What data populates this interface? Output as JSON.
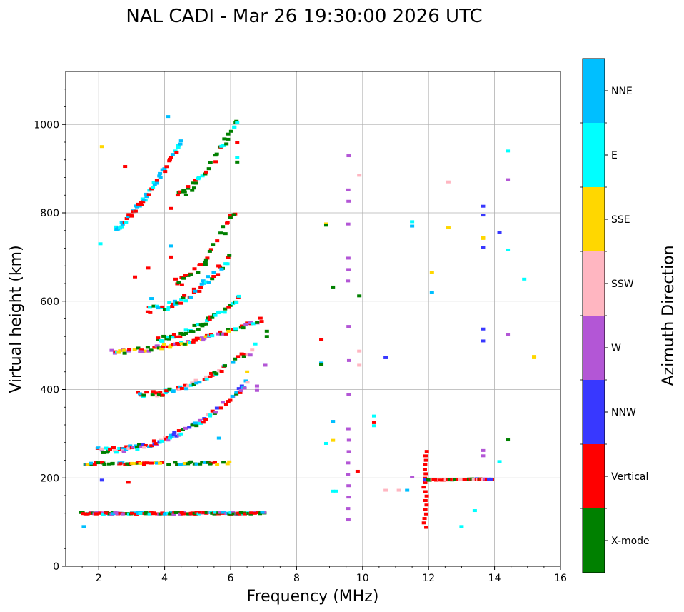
{
  "chart_data": {
    "type": "scatter",
    "title": "NAL CADI - Mar 26 19:30:00 2026 UTC",
    "xlabel": "Frequency (MHz)",
    "ylabel": "Virtual height (km)",
    "xlim": [
      1,
      16
    ],
    "ylim": [
      0,
      1120
    ],
    "x_ticks": [
      2,
      4,
      6,
      8,
      10,
      12,
      14,
      16
    ],
    "y_ticks": [
      0,
      200,
      400,
      600,
      800,
      1000
    ],
    "grid": true,
    "colorbar": {
      "label": "Azimuth Direction",
      "categories": [
        {
          "name": "X-mode",
          "color": "#008000"
        },
        {
          "name": "Vertical",
          "color": "#ff0000"
        },
        {
          "name": "NNW",
          "color": "#3838ff"
        },
        {
          "name": "W",
          "color": "#b356d6"
        },
        {
          "name": "SSW",
          "color": "#ffb6c1"
        },
        {
          "name": "SSE",
          "color": "#ffd700"
        },
        {
          "name": "E",
          "color": "#00ffff"
        },
        {
          "name": "NNE",
          "color": "#00bfff"
        }
      ]
    },
    "trace_segments": [
      {
        "name": "E-layer",
        "x0": 1.5,
        "x1": 7.0,
        "h0": 120,
        "h1": 120,
        "mix": [
          "Vertical",
          "Vertical",
          "X-mode",
          "W",
          "NNE",
          "X-mode",
          "Vertical",
          "E"
        ],
        "step": 0.09,
        "jitter": 2
      },
      {
        "name": "Es-2hop",
        "x0": 1.6,
        "x1": 6.0,
        "h0": 232,
        "h1": 234,
        "mix": [
          "Vertical",
          "X-mode",
          "X-mode",
          "SSE",
          "Vertical",
          "NNE"
        ],
        "step": 0.1,
        "jitter": 3
      },
      {
        "name": "F-trace-1",
        "x0": 2.0,
        "x1": 6.5,
        "h0": 262,
        "h1": 415,
        "curve": 2.2,
        "mix": [
          "Vertical",
          "Vertical",
          "X-mode",
          "NNE",
          "E",
          "SSW",
          "W",
          "NNW"
        ],
        "step": 0.07,
        "jitter": 6
      },
      {
        "name": "F-trace-2",
        "x0": 3.2,
        "x1": 6.8,
        "h0": 388,
        "h1": 505,
        "curve": 2.0,
        "mix": [
          "Vertical",
          "Vertical",
          "X-mode",
          "E",
          "NNE",
          "SSW"
        ],
        "step": 0.08,
        "jitter": 6
      },
      {
        "name": "F-trace-3",
        "x0": 2.4,
        "x1": 7.0,
        "h0": 486,
        "h1": 560,
        "curve": 1.8,
        "mix": [
          "Vertical",
          "Vertical",
          "X-mode",
          "E",
          "SSE",
          "W"
        ],
        "step": 0.08,
        "jitter": 5
      },
      {
        "name": "F-trace-4",
        "x0": 3.8,
        "x1": 6.3,
        "h0": 515,
        "h1": 610,
        "curve": 1.7,
        "mix": [
          "Vertical",
          "X-mode",
          "X-mode",
          "E"
        ],
        "step": 0.08,
        "jitter": 6
      },
      {
        "name": "F-trace-5",
        "x0": 3.5,
        "x1": 6.0,
        "h0": 580,
        "h1": 700,
        "curve": 1.8,
        "mix": [
          "Vertical",
          "X-mode",
          "NNE",
          "E"
        ],
        "step": 0.08,
        "jitter": 8
      },
      {
        "name": "F-trace-6",
        "x0": 2.5,
        "x1": 4.5,
        "h0": 765,
        "h1": 960,
        "curve": 1.3,
        "mix": [
          "Vertical",
          "NNE",
          "E",
          "Vertical"
        ],
        "step": 0.06,
        "jitter": 6
      },
      {
        "name": "F-trace-7",
        "x0": 4.4,
        "x1": 6.2,
        "h0": 840,
        "h1": 1010,
        "curve": 1.5,
        "mix": [
          "X-mode",
          "E",
          "Vertical",
          "X-mode"
        ],
        "step": 0.08,
        "jitter": 8
      },
      {
        "name": "F-trace-8",
        "x0": 4.3,
        "x1": 6.1,
        "h0": 640,
        "h1": 800,
        "curve": 1.6,
        "mix": [
          "Vertical",
          "X-mode",
          "Vertical"
        ],
        "step": 0.1,
        "jitter": 10
      },
      {
        "name": "W-column-9.6",
        "x0": 9.55,
        "x1": 9.6,
        "h0": 105,
        "h1": 955,
        "mix": [
          "W",
          "W",
          "W",
          "W"
        ],
        "step": 0.0,
        "count": 34,
        "jitter": 0
      },
      {
        "name": "Red-column-12",
        "x0": 11.85,
        "x1": 11.95,
        "h0": 88,
        "h1": 260,
        "mix": [
          "Vertical"
        ],
        "step": 0.0,
        "count": 18,
        "jitter": 0
      },
      {
        "name": "Hband-200",
        "x0": 11.9,
        "x1": 14.0,
        "h0": 195,
        "h1": 198,
        "mix": [
          "Vertical",
          "X-mode",
          "W",
          "NNW",
          "Vertical",
          "SSW"
        ],
        "step": 0.07,
        "jitter": 1
      }
    ],
    "scattered_points": [
      {
        "x": 8.9,
        "y": 775,
        "c": "SSE"
      },
      {
        "x": 8.9,
        "y": 772,
        "c": "X-mode"
      },
      {
        "x": 9.1,
        "y": 632,
        "c": "X-mode"
      },
      {
        "x": 8.75,
        "y": 513,
        "c": "Vertical"
      },
      {
        "x": 8.75,
        "y": 460,
        "c": "NNE"
      },
      {
        "x": 8.75,
        "y": 456,
        "c": "X-mode"
      },
      {
        "x": 9.1,
        "y": 328,
        "c": "NNE"
      },
      {
        "x": 9.1,
        "y": 285,
        "c": "SSE"
      },
      {
        "x": 8.9,
        "y": 278,
        "c": "E"
      },
      {
        "x": 9.1,
        "y": 170,
        "c": "E"
      },
      {
        "x": 9.2,
        "y": 170,
        "c": "E"
      },
      {
        "x": 9.9,
        "y": 885,
        "c": "SSW"
      },
      {
        "x": 9.9,
        "y": 612,
        "c": "X-mode"
      },
      {
        "x": 9.9,
        "y": 487,
        "c": "SSW"
      },
      {
        "x": 9.9,
        "y": 455,
        "c": "SSW"
      },
      {
        "x": 9.85,
        "y": 215,
        "c": "Vertical"
      },
      {
        "x": 10.35,
        "y": 340,
        "c": "E"
      },
      {
        "x": 10.35,
        "y": 325,
        "c": "Vertical"
      },
      {
        "x": 10.35,
        "y": 318,
        "c": "E"
      },
      {
        "x": 10.7,
        "y": 472,
        "c": "NNW"
      },
      {
        "x": 10.7,
        "y": 172,
        "c": "SSW"
      },
      {
        "x": 11.1,
        "y": 172,
        "c": "SSW"
      },
      {
        "x": 11.35,
        "y": 172,
        "c": "NNE"
      },
      {
        "x": 11.5,
        "y": 780,
        "c": "E"
      },
      {
        "x": 11.5,
        "y": 770,
        "c": "NNE"
      },
      {
        "x": 11.5,
        "y": 202,
        "c": "W"
      },
      {
        "x": 12.1,
        "y": 665,
        "c": "SSE"
      },
      {
        "x": 12.1,
        "y": 620,
        "c": "NNE"
      },
      {
        "x": 12.6,
        "y": 870,
        "c": "SSW"
      },
      {
        "x": 12.6,
        "y": 766,
        "c": "SSE"
      },
      {
        "x": 13.0,
        "y": 90,
        "c": "E"
      },
      {
        "x": 13.4,
        "y": 126,
        "c": "E"
      },
      {
        "x": 13.65,
        "y": 815,
        "c": "NNW"
      },
      {
        "x": 13.65,
        "y": 795,
        "c": "NNW"
      },
      {
        "x": 13.65,
        "y": 745,
        "c": "SSE"
      },
      {
        "x": 13.65,
        "y": 742,
        "c": "SSE"
      },
      {
        "x": 13.65,
        "y": 722,
        "c": "NNW"
      },
      {
        "x": 13.65,
        "y": 537,
        "c": "NNW"
      },
      {
        "x": 13.65,
        "y": 510,
        "c": "NNW"
      },
      {
        "x": 13.65,
        "y": 262,
        "c": "W"
      },
      {
        "x": 13.65,
        "y": 250,
        "c": "W"
      },
      {
        "x": 14.15,
        "y": 755,
        "c": "NNW"
      },
      {
        "x": 14.15,
        "y": 237,
        "c": "E"
      },
      {
        "x": 14.4,
        "y": 940,
        "c": "E"
      },
      {
        "x": 14.4,
        "y": 875,
        "c": "W"
      },
      {
        "x": 14.4,
        "y": 716,
        "c": "E"
      },
      {
        "x": 14.4,
        "y": 524,
        "c": "W"
      },
      {
        "x": 14.4,
        "y": 286,
        "c": "X-mode"
      },
      {
        "x": 14.9,
        "y": 650,
        "c": "E"
      },
      {
        "x": 15.2,
        "y": 475,
        "c": "SSE"
      },
      {
        "x": 15.2,
        "y": 472,
        "c": "SSE"
      },
      {
        "x": 2.1,
        "y": 950,
        "c": "SSE"
      },
      {
        "x": 4.1,
        "y": 1018,
        "c": "NNE"
      },
      {
        "x": 6.2,
        "y": 1005,
        "c": "E"
      },
      {
        "x": 6.2,
        "y": 960,
        "c": "Vertical"
      },
      {
        "x": 6.2,
        "y": 925,
        "c": "E"
      },
      {
        "x": 6.2,
        "y": 915,
        "c": "X-mode"
      },
      {
        "x": 7.1,
        "y": 532,
        "c": "X-mode"
      },
      {
        "x": 7.1,
        "y": 520,
        "c": "X-mode"
      },
      {
        "x": 7.05,
        "y": 455,
        "c": "W"
      },
      {
        "x": 6.8,
        "y": 408,
        "c": "W"
      },
      {
        "x": 6.8,
        "y": 398,
        "c": "W"
      },
      {
        "x": 6.5,
        "y": 440,
        "c": "SSE"
      },
      {
        "x": 6.6,
        "y": 478,
        "c": "W"
      },
      {
        "x": 2.05,
        "y": 730,
        "c": "E"
      },
      {
        "x": 2.8,
        "y": 905,
        "c": "Vertical"
      },
      {
        "x": 3.1,
        "y": 655,
        "c": "Vertical"
      },
      {
        "x": 3.5,
        "y": 675,
        "c": "Vertical"
      },
      {
        "x": 3.6,
        "y": 606,
        "c": "NNE"
      },
      {
        "x": 2.9,
        "y": 190,
        "c": "Vertical"
      },
      {
        "x": 1.55,
        "y": 90,
        "c": "NNE"
      },
      {
        "x": 2.1,
        "y": 195,
        "c": "NNW"
      },
      {
        "x": 5.65,
        "y": 290,
        "c": "NNE"
      },
      {
        "x": 4.2,
        "y": 810,
        "c": "Vertical"
      },
      {
        "x": 4.2,
        "y": 725,
        "c": "NNE"
      },
      {
        "x": 4.2,
        "y": 700,
        "c": "Vertical"
      }
    ]
  }
}
